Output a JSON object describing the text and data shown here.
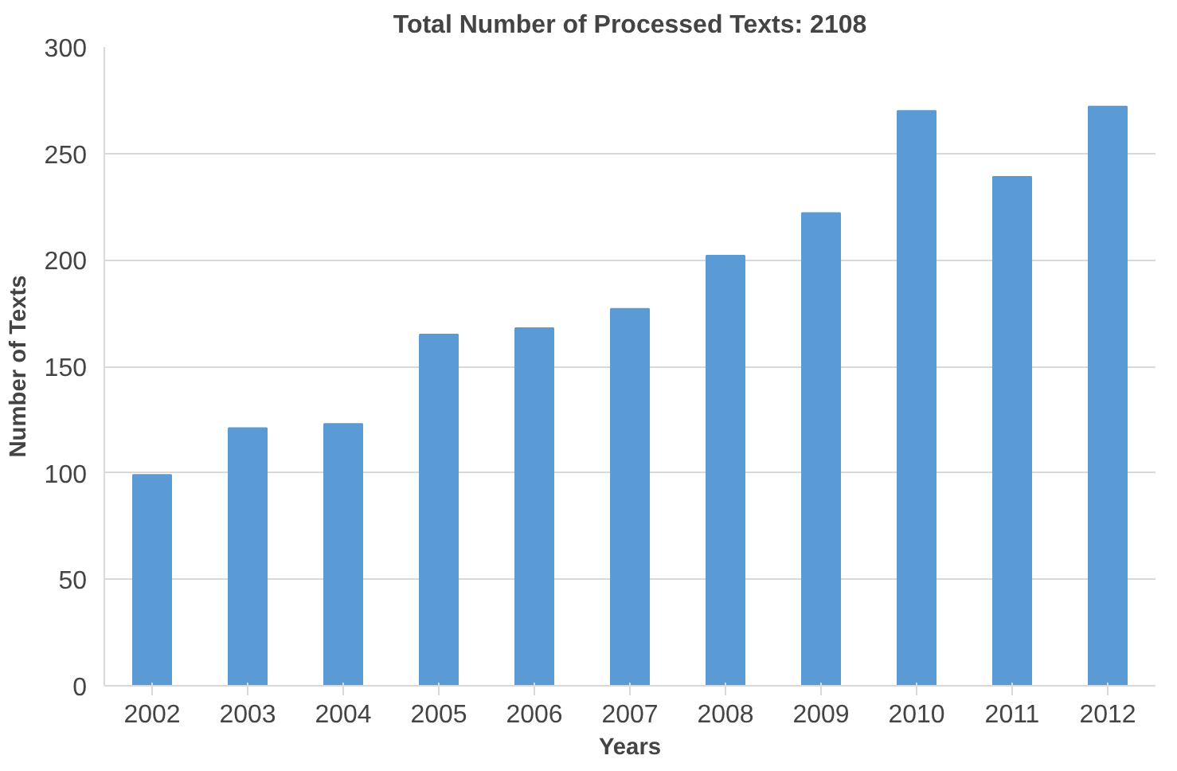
{
  "chart_data": {
    "type": "bar",
    "title": "Total Number of Processed Texts: 2108",
    "xlabel": "Years",
    "ylabel": "Number of Texts",
    "categories": [
      "2002",
      "2003",
      "2004",
      "2005",
      "2006",
      "2007",
      "2008",
      "2009",
      "2010",
      "2011",
      "2012"
    ],
    "values": [
      99,
      121,
      123,
      165,
      168,
      177,
      202,
      222,
      270,
      239,
      272
    ],
    "color": "#5b9bd5",
    "ylim": [
      0,
      300
    ],
    "yticks": [
      0,
      50,
      100,
      150,
      200,
      250,
      300
    ],
    "grid": "y"
  }
}
